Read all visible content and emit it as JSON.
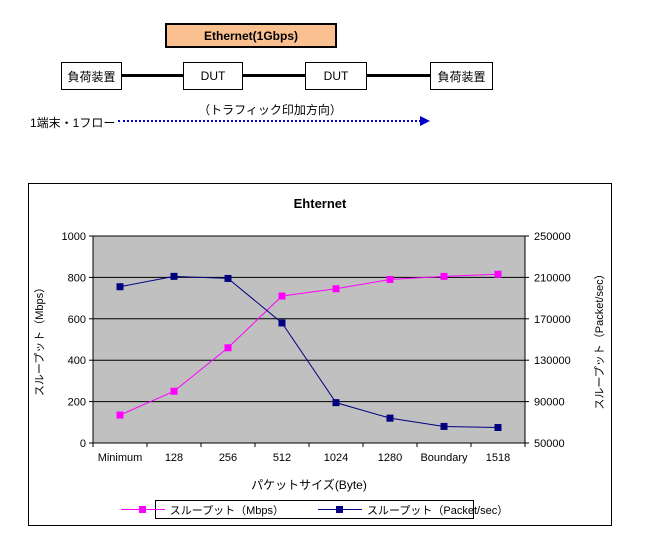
{
  "diagram": {
    "link_label": "Ethernet(1Gbps)",
    "nodes": [
      {
        "label": "負荷装置"
      },
      {
        "label": "DUT"
      },
      {
        "label": "DUT"
      },
      {
        "label": "負荷装置"
      }
    ],
    "flow_label": "1端末・1フロー",
    "arrow_label": "（トラフィック印加方向）",
    "colors": {
      "link_box_fill": "#FAC090",
      "arrow": "#0000CC",
      "connector": "#000000"
    }
  },
  "chart_data": {
    "type": "line",
    "title": "Ehternet",
    "categories": [
      "Minimum",
      "128",
      "256",
      "512",
      "1024",
      "1280",
      "Boundary",
      "1518"
    ],
    "xlabel": "パケットサイズ(Byte)",
    "left_axis": {
      "label": "スループット（Mbps）",
      "min": 0,
      "max": 1000,
      "ticks": [
        0,
        200,
        400,
        600,
        800,
        1000
      ]
    },
    "right_axis": {
      "label": "スループット（Packet/sec）",
      "min": 50000,
      "max": 250000,
      "ticks": [
        50000,
        90000,
        130000,
        170000,
        210000,
        250000
      ]
    },
    "series": [
      {
        "name": "スループット（Mbps）",
        "axis": "left",
        "color": "#FF00FF",
        "marker": "square",
        "values": [
          135,
          250,
          460,
          710,
          745,
          790,
          805,
          815
        ]
      },
      {
        "name": "スループット（Packet/sec）",
        "axis": "right",
        "color": "#000080",
        "marker": "square",
        "values": [
          201000,
          211000,
          209000,
          166000,
          89000,
          74000,
          66000,
          65000
        ]
      }
    ],
    "plot_bg": "#C0C0C0",
    "grid": true,
    "legend_position": "bottom"
  }
}
